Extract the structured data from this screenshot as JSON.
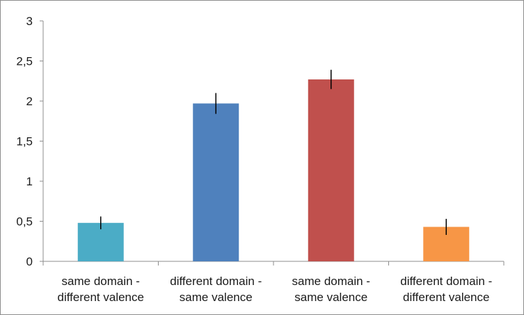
{
  "chart_data": {
    "type": "bar",
    "title": "",
    "xlabel": "",
    "ylabel": "",
    "categories": [
      [
        "same domain -",
        "different valence"
      ],
      [
        "different domain -",
        "same valence"
      ],
      [
        "same domain -",
        "same valence"
      ],
      [
        "different domain -",
        "different valence"
      ]
    ],
    "values": [
      0.48,
      1.97,
      2.27,
      0.43
    ],
    "errors": [
      0.08,
      0.13,
      0.12,
      0.1
    ],
    "colors": [
      "#4bacc6",
      "#4f81bd",
      "#c0504d",
      "#f79646"
    ],
    "ylim": [
      0,
      3
    ],
    "yticks": [
      0,
      0.5,
      1,
      1.5,
      2,
      2.5,
      3
    ],
    "ytick_labels": [
      "0",
      "0,5",
      "1",
      "1,5",
      "2",
      "2,5",
      "3"
    ],
    "grid": false,
    "legend": "none"
  }
}
